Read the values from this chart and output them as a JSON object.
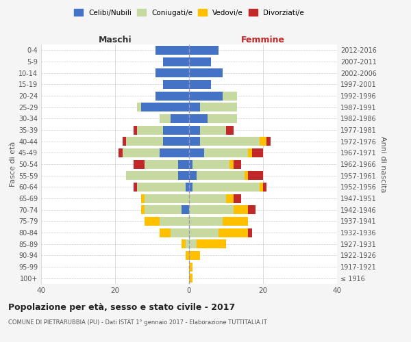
{
  "age_groups": [
    "100+",
    "95-99",
    "90-94",
    "85-89",
    "80-84",
    "75-79",
    "70-74",
    "65-69",
    "60-64",
    "55-59",
    "50-54",
    "45-49",
    "40-44",
    "35-39",
    "30-34",
    "25-29",
    "20-24",
    "15-19",
    "10-14",
    "5-9",
    "0-4"
  ],
  "birth_years": [
    "≤ 1916",
    "1917-1921",
    "1922-1926",
    "1927-1931",
    "1932-1936",
    "1937-1941",
    "1942-1946",
    "1947-1951",
    "1952-1956",
    "1957-1961",
    "1962-1966",
    "1967-1971",
    "1972-1976",
    "1977-1981",
    "1982-1986",
    "1987-1991",
    "1992-1996",
    "1997-2001",
    "2002-2006",
    "2007-2011",
    "2012-2016"
  ],
  "maschi": {
    "celibi": [
      0,
      0,
      0,
      0,
      0,
      0,
      2,
      0,
      1,
      3,
      3,
      8,
      7,
      7,
      5,
      13,
      9,
      7,
      9,
      7,
      9
    ],
    "coniugati": [
      0,
      0,
      0,
      1,
      5,
      8,
      10,
      12,
      13,
      14,
      9,
      10,
      10,
      7,
      3,
      1,
      0,
      0,
      0,
      0,
      0
    ],
    "vedovi": [
      0,
      0,
      1,
      1,
      3,
      4,
      1,
      1,
      0,
      0,
      0,
      0,
      0,
      0,
      0,
      0,
      0,
      0,
      0,
      0,
      0
    ],
    "divorziati": [
      0,
      0,
      0,
      0,
      0,
      0,
      0,
      0,
      1,
      0,
      3,
      1,
      1,
      1,
      0,
      0,
      0,
      0,
      0,
      0,
      0
    ]
  },
  "femmine": {
    "nubili": [
      0,
      0,
      0,
      0,
      0,
      0,
      0,
      0,
      1,
      2,
      1,
      4,
      3,
      3,
      5,
      3,
      9,
      6,
      9,
      6,
      8
    ],
    "coniugate": [
      0,
      0,
      0,
      2,
      8,
      9,
      12,
      10,
      18,
      13,
      10,
      12,
      16,
      7,
      8,
      10,
      4,
      0,
      0,
      0,
      0
    ],
    "vedove": [
      1,
      1,
      3,
      8,
      8,
      7,
      4,
      2,
      1,
      1,
      1,
      1,
      2,
      0,
      0,
      0,
      0,
      0,
      0,
      0,
      0
    ],
    "divorziate": [
      0,
      0,
      0,
      0,
      1,
      0,
      2,
      2,
      1,
      4,
      2,
      3,
      1,
      2,
      0,
      0,
      0,
      0,
      0,
      0,
      0
    ]
  },
  "colors": {
    "celibi": "#4472c4",
    "coniugati": "#c5d9a0",
    "vedovi": "#ffc000",
    "divorziati": "#c0282a"
  },
  "xlim": 40,
  "title": "Popolazione per età, sesso e stato civile - 2017",
  "subtitle": "COMUNE DI PIETRARUBBIA (PU) - Dati ISTAT 1° gennaio 2017 - Elaborazione TUTTITALIA.IT",
  "ylabel_left": "Fasce di età",
  "ylabel_right": "Anni di nascita",
  "xlabel_left": "Maschi",
  "xlabel_right": "Femmine",
  "bg_color": "#f5f5f5",
  "plot_bg_color": "#ffffff"
}
